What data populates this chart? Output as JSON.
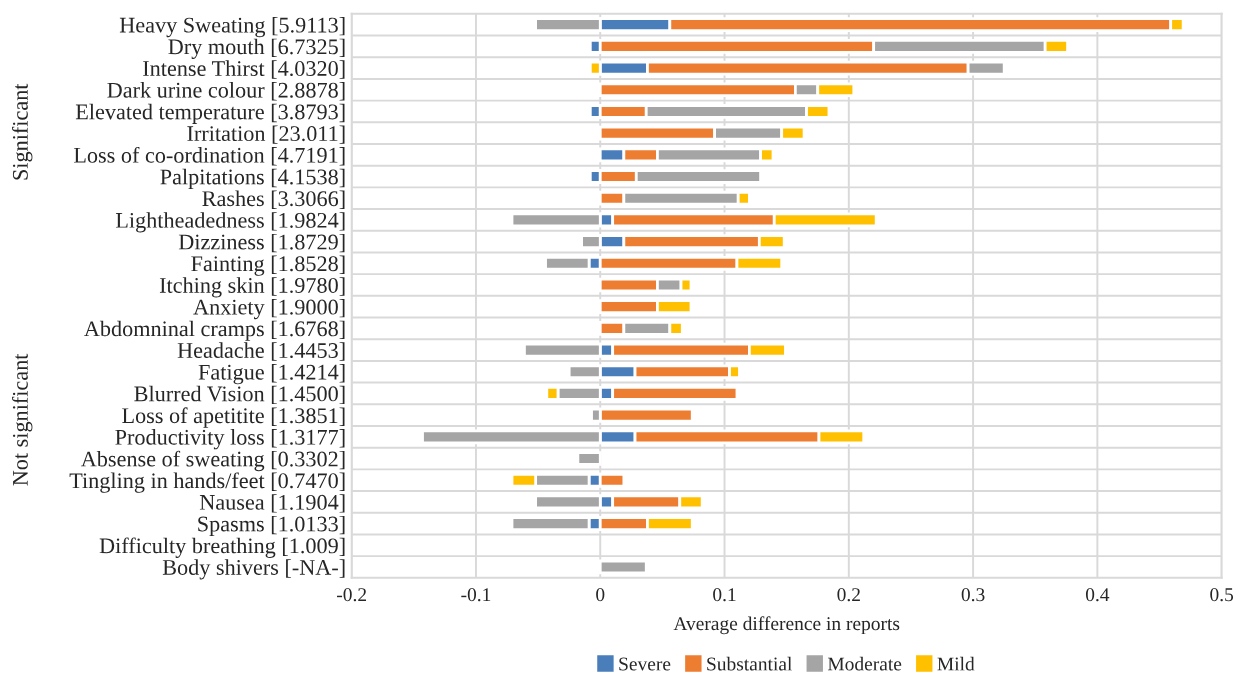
{
  "chart_data": {
    "type": "bar",
    "orientation": "horizontal",
    "stacked": true,
    "categories": [
      "Heavy Sweating [5.9113]",
      "Dry mouth [6.7325]",
      "Intense Thirst [4.0320]",
      "Dark urine colour [2.8878]",
      "Elevated temperature [3.8793]",
      "Irritation [23.011]",
      "Loss of co-ordination [4.7191]",
      "Palpitations [4.1538]",
      "Rashes [3.3066]",
      "Lightheadedness [1.9824]",
      "Dizziness [1.8729]",
      "Fainting [1.8528]",
      "Itching skin [1.9780]",
      "Anxiety [1.9000]",
      "Abdomninal cramps [1.6768]",
      "Headache [1.4453]",
      "Fatigue [1.4214]",
      "Blurred Vision [1.4500]",
      "Loss of apetitite [1.3851]",
      "Productivity loss [1.3177]",
      "Absense of sweating [0.3302]",
      "Tingling in hands/feet [0.7470]",
      "Nausea [1.1904]",
      "Spasms [1.0133]",
      "Difficulty breathing [1.009]",
      "Body shivers [-NA-]"
    ],
    "series": [
      {
        "name": "Severe",
        "color": "#4a7ebb",
        "values": [
          0.056,
          -0.008,
          0.038,
          null,
          -0.008,
          null,
          0.019,
          -0.008,
          null,
          0.01,
          0.019,
          -0.009,
          null,
          null,
          null,
          0.01,
          0.028,
          0.01,
          null,
          0.028,
          null,
          -0.009,
          0.01,
          -0.009,
          null,
          null
        ]
      },
      {
        "name": "Substantial",
        "color": "#ed7d31",
        "values": [
          0.403,
          0.22,
          0.258,
          0.157,
          0.037,
          0.092,
          0.027,
          0.029,
          0.019,
          0.13,
          0.109,
          0.11,
          0.046,
          0.046,
          0.019,
          0.11,
          0.076,
          0.1,
          0.074,
          0.148,
          null,
          0.019,
          0.054,
          0.038,
          null,
          null
        ]
      },
      {
        "name": "Moderate",
        "color": "#a5a5a5",
        "values": [
          -0.052,
          0.138,
          0.029,
          0.018,
          0.129,
          0.054,
          0.083,
          0.1,
          0.092,
          -0.071,
          -0.015,
          -0.035,
          0.019,
          null,
          0.037,
          -0.061,
          -0.025,
          -0.034,
          -0.007,
          -0.143,
          -0.018,
          -0.043,
          -0.052,
          -0.062,
          null,
          0.037
        ]
      },
      {
        "name": "Mild",
        "color": "#ffc000",
        "values": [
          0.01,
          0.018,
          -0.008,
          0.029,
          0.018,
          0.018,
          0.01,
          null,
          0.009,
          0.082,
          0.02,
          0.036,
          0.008,
          0.027,
          0.01,
          0.029,
          0.008,
          -0.009,
          null,
          0.036,
          null,
          -0.019,
          0.018,
          0.036,
          null,
          null
        ]
      }
    ],
    "xlabel": "Average difference in reports",
    "xlim": [
      -0.2,
      0.5
    ],
    "xticks": [
      -0.2,
      -0.1,
      0,
      0.1,
      0.2,
      0.3,
      0.4,
      0.5
    ],
    "annotations": [
      "Significant",
      "Not significant"
    ],
    "grid": true,
    "legend": "bottom"
  }
}
